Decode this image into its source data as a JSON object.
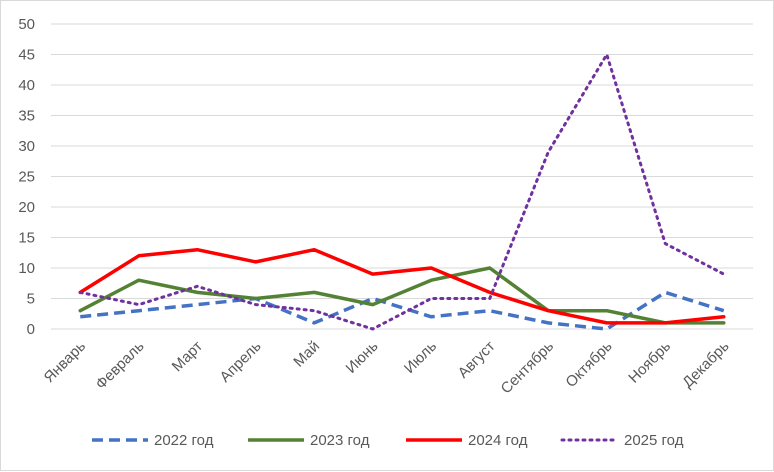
{
  "chart_data": {
    "type": "line",
    "categories": [
      "Январь",
      "Февраль",
      "Март",
      "Апрель",
      "Май",
      "Июнь",
      "Июль",
      "Август",
      "Сентябрь",
      "Октябрь",
      "Ноябрь",
      "Декабрь"
    ],
    "ylim": [
      0,
      50
    ],
    "yticks": [
      "0",
      "5",
      "10",
      "15",
      "20",
      "25",
      "30",
      "35",
      "40",
      "45",
      "50"
    ],
    "grid": true,
    "legend_position": "bottom",
    "series": [
      {
        "name": "2022 год",
        "color": "#4472c4",
        "style": "dashed",
        "values": [
          2,
          3,
          4,
          5,
          1,
          5,
          2,
          3,
          1,
          0,
          6,
          3
        ]
      },
      {
        "name": "2023 год",
        "color": "#548235",
        "style": "solid",
        "values": [
          3,
          8,
          6,
          5,
          6,
          4,
          8,
          10,
          3,
          3,
          1,
          1
        ]
      },
      {
        "name": "2024 год",
        "color": "#ff0000",
        "style": "solid",
        "values": [
          6,
          12,
          13,
          11,
          13,
          9,
          10,
          6,
          3,
          1,
          1,
          2
        ]
      },
      {
        "name": "2025 год",
        "color": "#7030a0",
        "style": "dotted",
        "values": [
          6,
          4,
          7,
          4,
          3,
          0,
          5,
          5,
          29,
          45,
          14,
          9
        ]
      }
    ]
  }
}
